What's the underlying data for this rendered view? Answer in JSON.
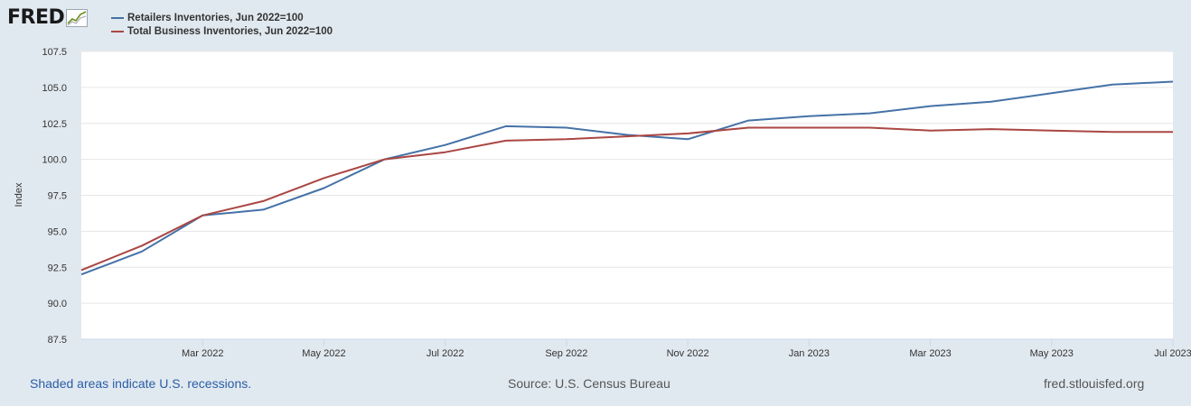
{
  "logo": {
    "text": "FRED",
    "icon": "chart-line-icon"
  },
  "legend": [
    {
      "label": "Retailers Inventories, Jun 2022=100",
      "color": "#4572a7"
    },
    {
      "label": "Total Business Inventories, Jun 2022=100",
      "color": "#aa4643"
    }
  ],
  "footer": {
    "recession_note": "Shaded areas indicate U.S. recessions.",
    "source": "Source: U.S. Census Bureau",
    "site": "fred.stlouisfed.org"
  },
  "chart_data": {
    "type": "line",
    "title": "",
    "xlabel": "",
    "ylabel": "Index",
    "ylim": [
      87.5,
      107.5
    ],
    "y_ticks": [
      "87.5",
      "90.0",
      "92.5",
      "95.0",
      "97.5",
      "100.0",
      "102.5",
      "105.0",
      "107.5"
    ],
    "x": [
      "2022-01",
      "2022-02",
      "2022-03",
      "2022-04",
      "2022-05",
      "2022-06",
      "2022-07",
      "2022-08",
      "2022-09",
      "2022-10",
      "2022-11",
      "2022-12",
      "2023-01",
      "2023-02",
      "2023-03",
      "2023-04",
      "2023-05",
      "2023-06",
      "2023-07"
    ],
    "x_tick_labels": [
      {
        "x": "2022-03",
        "label": "Mar 2022"
      },
      {
        "x": "2022-05",
        "label": "May 2022"
      },
      {
        "x": "2022-07",
        "label": "Jul 2022"
      },
      {
        "x": "2022-09",
        "label": "Sep 2022"
      },
      {
        "x": "2022-11",
        "label": "Nov 2022"
      },
      {
        "x": "2023-01",
        "label": "Jan 2023"
      },
      {
        "x": "2023-03",
        "label": "Mar 2023"
      },
      {
        "x": "2023-05",
        "label": "May 2023"
      },
      {
        "x": "2023-07",
        "label": "Jul 2023"
      }
    ],
    "grid": true,
    "series": [
      {
        "name": "Retailers Inventories, Jun 2022=100",
        "color": "#4572a7",
        "values": [
          92.0,
          93.6,
          96.1,
          96.5,
          98.0,
          100.0,
          101.0,
          102.3,
          102.2,
          101.7,
          101.4,
          102.7,
          103.0,
          103.2,
          103.7,
          104.0,
          104.6,
          105.2,
          105.4
        ]
      },
      {
        "name": "Total Business Inventories, Jun 2022=100",
        "color": "#aa4643",
        "values": [
          92.3,
          94.0,
          96.1,
          97.1,
          98.7,
          100.0,
          100.5,
          101.3,
          101.4,
          101.6,
          101.8,
          102.2,
          102.2,
          102.2,
          102.0,
          102.1,
          102.0,
          101.9,
          101.9
        ]
      }
    ]
  }
}
